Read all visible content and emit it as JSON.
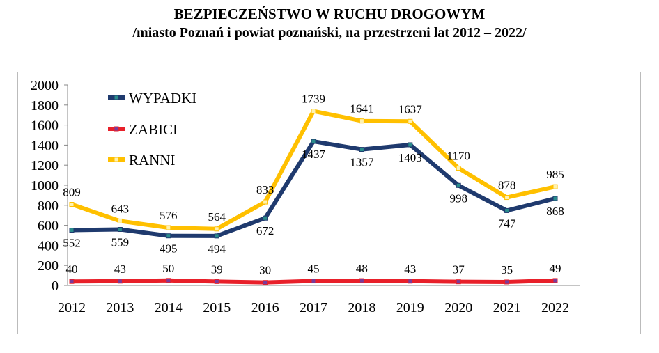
{
  "title": "BEZPIECZEŃSTWO W RUCHU DROGOWYM",
  "subtitle": "/miasto Poznań i powiat poznański, na przestrzeni lat 2012 – 2022/",
  "chart_data": {
    "type": "line",
    "title": "BEZPIECZEŃSTWO W RUCHU DROGOWYM",
    "subtitle": "/miasto Poznań i powiat poznański, na przestrzeni lat 2012 – 2022/",
    "xlabel": "",
    "ylabel": "",
    "x": [
      "2012",
      "2013",
      "2014",
      "2015",
      "2016",
      "2017",
      "2018",
      "2019",
      "2020",
      "2021",
      "2022"
    ],
    "ylim": [
      0,
      2000
    ],
    "yticks": [
      0,
      200,
      400,
      600,
      800,
      1000,
      1200,
      1400,
      1600,
      1800,
      2000
    ],
    "legend": "top-left",
    "grid": false,
    "series": [
      {
        "name": "WYPADKI",
        "color": "#1F3A6E",
        "marker": "#2A8C8C",
        "label_pos": "below",
        "values": [
          552,
          559,
          495,
          494,
          672,
          1437,
          1357,
          1403,
          998,
          747,
          868
        ]
      },
      {
        "name": "ZABICI",
        "color": "#E8202A",
        "marker": "#7A3A9A",
        "label_pos": "above",
        "values": [
          40,
          43,
          50,
          39,
          30,
          45,
          48,
          43,
          37,
          35,
          49
        ]
      },
      {
        "name": "RANNI",
        "color": "#FFC000",
        "marker": "#FFF2B0",
        "label_pos": "above",
        "values": [
          809,
          643,
          576,
          564,
          833,
          1739,
          1641,
          1637,
          1170,
          878,
          985
        ]
      }
    ]
  }
}
